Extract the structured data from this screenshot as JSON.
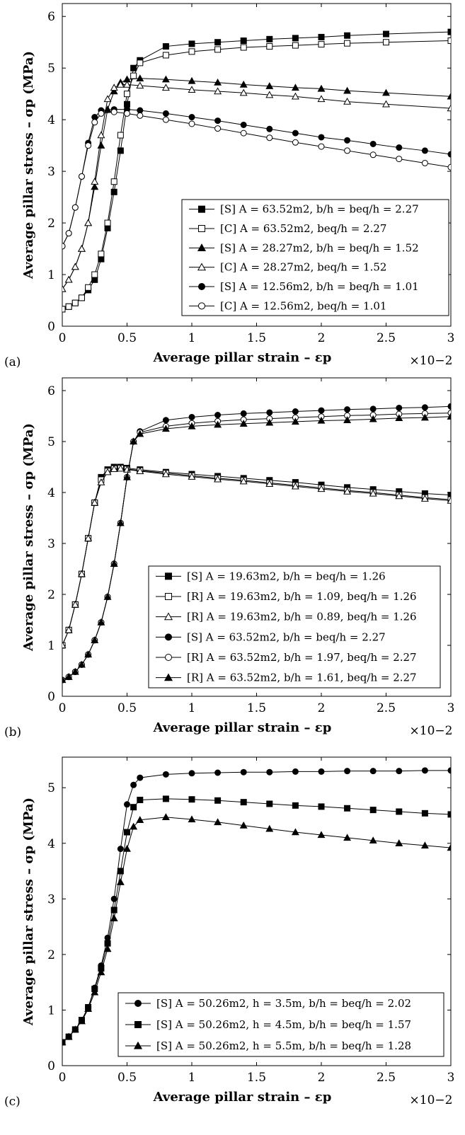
{
  "figure": {
    "xlabel": "Average pillar strain – εp",
    "ylabel": "Average pillar stress – σp (MPa)",
    "x_multiplier": "×10−2"
  },
  "chart_data": [
    {
      "panel": "(a)",
      "type": "line",
      "xlabel": "Average pillar strain – εp",
      "ylabel": "Average pillar stress – σp (MPa)",
      "xlim": [
        0,
        3
      ],
      "ylim": [
        0,
        6.25
      ],
      "xticks": [
        0,
        0.5,
        1,
        1.5,
        2,
        2.5,
        3
      ],
      "xticklabels": [
        "0",
        "0.5",
        "1",
        "1.5",
        "2",
        "2.5",
        "3"
      ],
      "yticks": [
        0,
        1,
        2,
        3,
        4,
        5,
        6
      ],
      "yticklabels": [
        "0",
        "1",
        "2",
        "3",
        "4",
        "5",
        "6"
      ],
      "grid": false,
      "legend_position": "bottom-right",
      "series": [
        {
          "name": "[S] A = 63.52m2, b/h = beq/h = 2.27",
          "marker": "square",
          "filled": true,
          "x": [
            0,
            0.05,
            0.1,
            0.15,
            0.2,
            0.25,
            0.3,
            0.35,
            0.4,
            0.45,
            0.5,
            0.55,
            0.6,
            0.8,
            1.0,
            1.2,
            1.4,
            1.6,
            1.8,
            2.0,
            2.2,
            2.5,
            3.0
          ],
          "y": [
            0.33,
            0.38,
            0.45,
            0.55,
            0.7,
            0.9,
            1.3,
            1.9,
            2.6,
            3.4,
            4.3,
            5.0,
            5.15,
            5.42,
            5.47,
            5.5,
            5.53,
            5.56,
            5.58,
            5.6,
            5.63,
            5.66,
            5.7
          ]
        },
        {
          "name": "[C] A = 63.52m2, beq/h = 2.27",
          "marker": "square",
          "filled": false,
          "x": [
            0,
            0.05,
            0.1,
            0.15,
            0.2,
            0.25,
            0.3,
            0.35,
            0.4,
            0.45,
            0.5,
            0.55,
            0.6,
            0.8,
            1.0,
            1.2,
            1.4,
            1.6,
            1.8,
            2.0,
            2.2,
            2.5,
            3.0
          ],
          "y": [
            0.33,
            0.38,
            0.45,
            0.55,
            0.75,
            1.0,
            1.4,
            2.0,
            2.8,
            3.7,
            4.5,
            4.85,
            5.1,
            5.25,
            5.32,
            5.36,
            5.4,
            5.42,
            5.44,
            5.46,
            5.48,
            5.5,
            5.53
          ]
        },
        {
          "name": "[S] A = 28.27m2, b/h = beq/h = 1.52",
          "marker": "triangle",
          "filled": true,
          "x": [
            0,
            0.05,
            0.1,
            0.15,
            0.2,
            0.25,
            0.3,
            0.35,
            0.4,
            0.45,
            0.5,
            0.6,
            0.8,
            1.0,
            1.2,
            1.4,
            1.6,
            1.8,
            2.0,
            2.2,
            2.5,
            3.0
          ],
          "y": [
            0.72,
            0.9,
            1.15,
            1.5,
            2.0,
            2.7,
            3.5,
            4.2,
            4.55,
            4.72,
            4.78,
            4.8,
            4.78,
            4.75,
            4.72,
            4.68,
            4.65,
            4.62,
            4.6,
            4.56,
            4.52,
            4.45
          ]
        },
        {
          "name": "[C] A = 28.27m2, beq/h = 1.52",
          "marker": "triangle",
          "filled": false,
          "x": [
            0,
            0.05,
            0.1,
            0.15,
            0.2,
            0.25,
            0.3,
            0.35,
            0.4,
            0.45,
            0.5,
            0.6,
            0.8,
            1.0,
            1.2,
            1.4,
            1.6,
            1.8,
            2.0,
            2.2,
            2.5,
            3.0
          ],
          "y": [
            0.72,
            0.9,
            1.15,
            1.5,
            2.0,
            2.8,
            3.7,
            4.4,
            4.62,
            4.68,
            4.68,
            4.66,
            4.62,
            4.58,
            4.55,
            4.52,
            4.48,
            4.45,
            4.4,
            4.35,
            4.3,
            4.22
          ]
        },
        {
          "name": "[S] A = 12.56m2, b/h = beq/h = 1.01",
          "marker": "circle",
          "filled": true,
          "x": [
            0,
            0.05,
            0.1,
            0.15,
            0.2,
            0.25,
            0.3,
            0.4,
            0.5,
            0.6,
            0.8,
            1.0,
            1.2,
            1.4,
            1.6,
            1.8,
            2.0,
            2.2,
            2.4,
            2.6,
            2.8,
            3.0
          ],
          "y": [
            1.55,
            1.8,
            2.3,
            2.9,
            3.55,
            4.05,
            4.18,
            4.2,
            4.2,
            4.18,
            4.12,
            4.05,
            3.98,
            3.9,
            3.82,
            3.74,
            3.66,
            3.6,
            3.53,
            3.46,
            3.4,
            3.33
          ]
        },
        {
          "name": "[C] A = 12.56m2, beq/h = 1.01",
          "marker": "circle",
          "filled": false,
          "x": [
            0,
            0.05,
            0.1,
            0.15,
            0.2,
            0.25,
            0.3,
            0.4,
            0.5,
            0.6,
            0.8,
            1.0,
            1.2,
            1.4,
            1.6,
            1.8,
            2.0,
            2.2,
            2.4,
            2.6,
            2.8,
            3.0
          ],
          "y": [
            1.55,
            1.8,
            2.3,
            2.9,
            3.5,
            3.95,
            4.12,
            4.15,
            4.12,
            4.08,
            4.0,
            3.92,
            3.83,
            3.74,
            3.65,
            3.56,
            3.48,
            3.4,
            3.32,
            3.24,
            3.16,
            3.08
          ]
        }
      ]
    },
    {
      "panel": "(b)",
      "type": "line",
      "xlabel": "Average pillar strain – εp",
      "ylabel": "Average pillar stress – σp (MPa)",
      "xlim": [
        0,
        3
      ],
      "ylim": [
        0,
        6.25
      ],
      "xticks": [
        0,
        0.5,
        1,
        1.5,
        2,
        2.5,
        3
      ],
      "xticklabels": [
        "0",
        "0.5",
        "1",
        "1.5",
        "2",
        "2.5",
        "3"
      ],
      "yticks": [
        0,
        1,
        2,
        3,
        4,
        5,
        6
      ],
      "yticklabels": [
        "0",
        "1",
        "2",
        "3",
        "4",
        "5",
        "6"
      ],
      "grid": false,
      "legend_position": "bottom-right",
      "series": [
        {
          "name": "[S] A = 19.63m2, b/h = beq/h = 1.26",
          "marker": "square",
          "filled": true,
          "x": [
            0,
            0.05,
            0.1,
            0.15,
            0.2,
            0.25,
            0.3,
            0.35,
            0.4,
            0.45,
            0.5,
            0.6,
            0.8,
            1.0,
            1.2,
            1.4,
            1.6,
            1.8,
            2.0,
            2.2,
            2.4,
            2.6,
            2.8,
            3.0
          ],
          "y": [
            1.0,
            1.3,
            1.8,
            2.4,
            3.1,
            3.8,
            4.3,
            4.45,
            4.5,
            4.5,
            4.48,
            4.45,
            4.4,
            4.36,
            4.32,
            4.28,
            4.24,
            4.2,
            4.15,
            4.1,
            4.06,
            4.02,
            3.98,
            3.95
          ]
        },
        {
          "name": "[R] A = 19.63m2, b/h = 1.09, beq/h = 1.26",
          "marker": "square",
          "filled": false,
          "x": [
            0,
            0.05,
            0.1,
            0.15,
            0.2,
            0.25,
            0.3,
            0.35,
            0.4,
            0.45,
            0.5,
            0.6,
            0.8,
            1.0,
            1.2,
            1.4,
            1.6,
            1.8,
            2.0,
            2.2,
            2.4,
            2.6,
            2.8,
            3.0
          ],
          "y": [
            1.0,
            1.3,
            1.8,
            2.4,
            3.1,
            3.8,
            4.25,
            4.42,
            4.47,
            4.48,
            4.46,
            4.43,
            4.38,
            4.33,
            4.28,
            4.24,
            4.19,
            4.14,
            4.09,
            4.04,
            4.0,
            3.95,
            3.9,
            3.86
          ]
        },
        {
          "name": "[R] A = 19.63m2, b/h = 0.89, beq/h = 1.26",
          "marker": "triangle",
          "filled": false,
          "x": [
            0,
            0.05,
            0.1,
            0.15,
            0.2,
            0.25,
            0.3,
            0.35,
            0.4,
            0.45,
            0.5,
            0.6,
            0.8,
            1.0,
            1.2,
            1.4,
            1.6,
            1.8,
            2.0,
            2.2,
            2.4,
            2.6,
            2.8,
            3.0
          ],
          "y": [
            1.0,
            1.3,
            1.8,
            2.4,
            3.1,
            3.8,
            4.2,
            4.4,
            4.46,
            4.47,
            4.45,
            4.42,
            4.36,
            4.31,
            4.26,
            4.22,
            4.17,
            4.12,
            4.07,
            4.02,
            3.98,
            3.93,
            3.88,
            3.84
          ]
        },
        {
          "name": "[S] A = 63.52m2, b/h = beq/h = 2.27",
          "marker": "circle",
          "filled": true,
          "x": [
            0,
            0.05,
            0.1,
            0.15,
            0.2,
            0.25,
            0.3,
            0.35,
            0.4,
            0.45,
            0.5,
            0.55,
            0.6,
            0.8,
            1.0,
            1.2,
            1.4,
            1.6,
            1.8,
            2.0,
            2.2,
            2.4,
            2.6,
            2.8,
            3.0
          ],
          "y": [
            0.32,
            0.38,
            0.48,
            0.62,
            0.82,
            1.1,
            1.45,
            1.95,
            2.6,
            3.4,
            4.3,
            5.0,
            5.2,
            5.42,
            5.48,
            5.52,
            5.55,
            5.57,
            5.59,
            5.61,
            5.63,
            5.64,
            5.66,
            5.67,
            5.69
          ]
        },
        {
          "name": "[R] A = 63.52m2, b/h = 1.97, beq/h = 2.27",
          "marker": "circle",
          "filled": false,
          "x": [
            0,
            0.05,
            0.1,
            0.15,
            0.2,
            0.25,
            0.3,
            0.35,
            0.4,
            0.45,
            0.5,
            0.55,
            0.6,
            0.8,
            1.0,
            1.2,
            1.4,
            1.6,
            1.8,
            2.0,
            2.2,
            2.4,
            2.6,
            2.8,
            3.0
          ],
          "y": [
            0.32,
            0.38,
            0.48,
            0.62,
            0.82,
            1.1,
            1.45,
            1.95,
            2.6,
            3.4,
            4.3,
            5.0,
            5.18,
            5.3,
            5.36,
            5.4,
            5.43,
            5.45,
            5.47,
            5.49,
            5.51,
            5.52,
            5.54,
            5.55,
            5.56
          ]
        },
        {
          "name": "[R] A = 63.52m2, b/h = 1.61, beq/h = 2.27",
          "marker": "triangle",
          "filled": true,
          "x": [
            0,
            0.05,
            0.1,
            0.15,
            0.2,
            0.25,
            0.3,
            0.35,
            0.4,
            0.45,
            0.5,
            0.55,
            0.6,
            0.8,
            1.0,
            1.2,
            1.4,
            1.6,
            1.8,
            2.0,
            2.2,
            2.4,
            2.6,
            2.8,
            3.0
          ],
          "y": [
            0.32,
            0.38,
            0.48,
            0.62,
            0.82,
            1.1,
            1.45,
            1.95,
            2.6,
            3.4,
            4.3,
            5.0,
            5.15,
            5.25,
            5.3,
            5.33,
            5.35,
            5.37,
            5.39,
            5.41,
            5.42,
            5.44,
            5.46,
            5.47,
            5.49
          ]
        }
      ]
    },
    {
      "panel": "(c)",
      "type": "line",
      "xlabel": "Average pillar strain – εp",
      "ylabel": "Average pillar stress – σp (MPa)",
      "xlim": [
        0,
        3
      ],
      "ylim": [
        0,
        5.55
      ],
      "xticks": [
        0,
        0.5,
        1,
        1.5,
        2,
        2.5,
        3
      ],
      "xticklabels": [
        "0",
        "0.5",
        "1",
        "1.5",
        "2",
        "2.5",
        "3"
      ],
      "yticks": [
        0,
        1,
        2,
        3,
        4,
        5
      ],
      "yticklabels": [
        "0",
        "1",
        "2",
        "3",
        "4",
        "5"
      ],
      "grid": false,
      "legend_position": "bottom-right",
      "series": [
        {
          "name": "[S] A = 50.26m2, h = 3.5m, b/h = beq/h = 2.02",
          "marker": "circle",
          "filled": true,
          "x": [
            0,
            0.05,
            0.1,
            0.15,
            0.2,
            0.25,
            0.3,
            0.35,
            0.4,
            0.45,
            0.5,
            0.55,
            0.6,
            0.8,
            1.0,
            1.2,
            1.4,
            1.6,
            1.8,
            2.0,
            2.2,
            2.4,
            2.6,
            2.8,
            3.0
          ],
          "y": [
            0.42,
            0.52,
            0.65,
            0.82,
            1.05,
            1.4,
            1.8,
            2.3,
            3.0,
            3.9,
            4.7,
            5.05,
            5.18,
            5.24,
            5.26,
            5.27,
            5.28,
            5.28,
            5.29,
            5.29,
            5.3,
            5.3,
            5.3,
            5.31,
            5.31
          ]
        },
        {
          "name": "[S] A = 50.26m2, h = 4.5m, b/h = beq/h = 1.57",
          "marker": "square",
          "filled": true,
          "x": [
            0,
            0.05,
            0.1,
            0.15,
            0.2,
            0.25,
            0.3,
            0.35,
            0.4,
            0.45,
            0.5,
            0.55,
            0.6,
            0.8,
            1.0,
            1.2,
            1.4,
            1.6,
            1.8,
            2.0,
            2.2,
            2.4,
            2.6,
            2.8,
            3.0
          ],
          "y": [
            0.42,
            0.52,
            0.65,
            0.82,
            1.05,
            1.38,
            1.75,
            2.2,
            2.8,
            3.5,
            4.2,
            4.65,
            4.78,
            4.8,
            4.79,
            4.77,
            4.74,
            4.71,
            4.68,
            4.66,
            4.63,
            4.6,
            4.57,
            4.54,
            4.52
          ]
        },
        {
          "name": "[S] A = 50.26m2, h = 5.5m, b/h = beq/h = 1.28",
          "marker": "triangle",
          "filled": true,
          "x": [
            0,
            0.05,
            0.1,
            0.15,
            0.2,
            0.25,
            0.3,
            0.35,
            0.4,
            0.45,
            0.5,
            0.55,
            0.6,
            0.8,
            1.0,
            1.2,
            1.4,
            1.6,
            1.8,
            2.0,
            2.2,
            2.4,
            2.6,
            2.8,
            3.0
          ],
          "y": [
            0.42,
            0.52,
            0.65,
            0.8,
            1.02,
            1.32,
            1.68,
            2.1,
            2.65,
            3.3,
            3.9,
            4.3,
            4.42,
            4.47,
            4.43,
            4.38,
            4.32,
            4.26,
            4.2,
            4.15,
            4.1,
            4.05,
            4.0,
            3.96,
            3.92
          ]
        }
      ]
    }
  ]
}
